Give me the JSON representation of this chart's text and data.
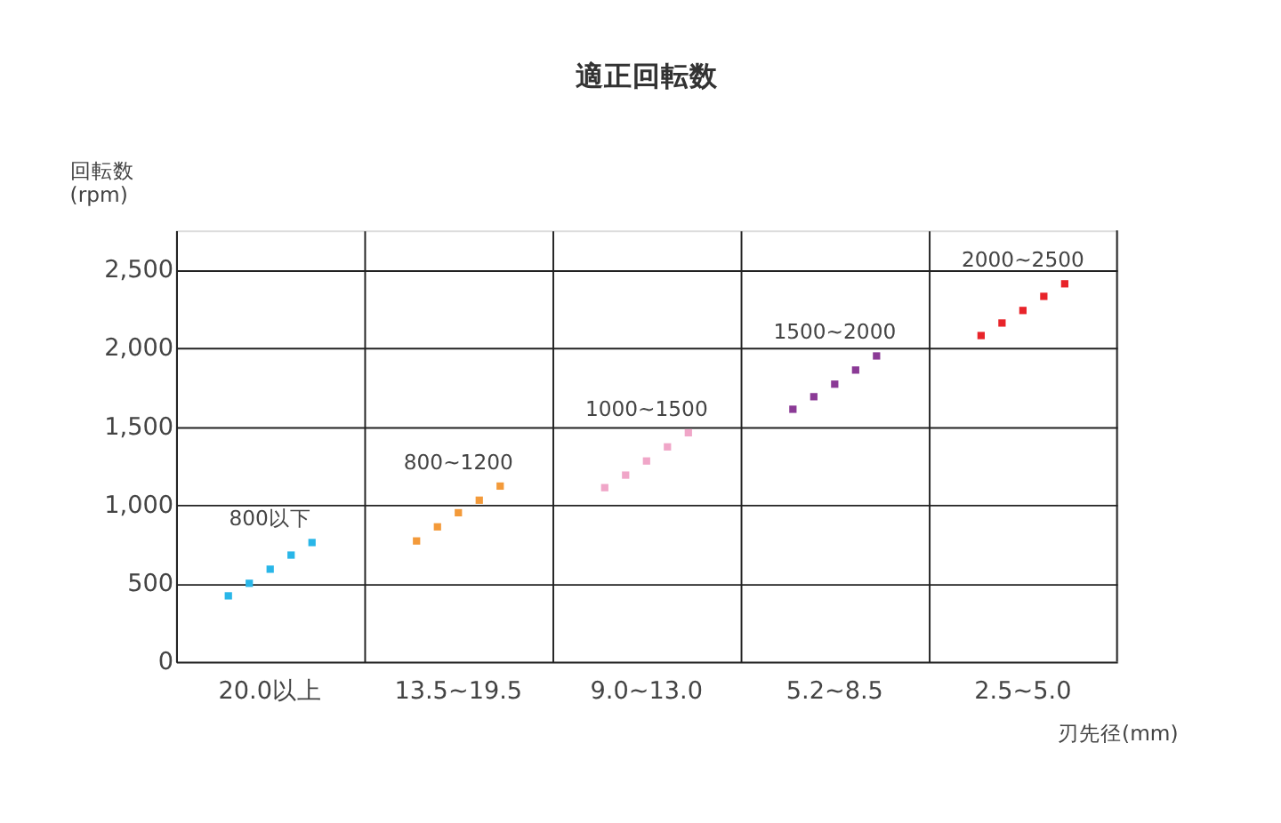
{
  "chart_data": {
    "type": "scatter",
    "title": "適正回転数",
    "xlabel": "刃先径(mm)",
    "ylabel": "回転数\n(rpm)",
    "categories": [
      "20.0以上",
      "13.5~19.5",
      "9.0~13.0",
      "5.2~8.5",
      "2.5~5.0"
    ],
    "series": [
      {
        "color": "#29b6e8",
        "x": [
          "20.0以上",
          "20.0以上",
          "20.0以上",
          "20.0以上",
          "20.0以上"
        ],
        "values": [
          420,
          500,
          590,
          680,
          760
        ]
      },
      {
        "color": "#f39a3a",
        "x": [
          "13.5~19.5",
          "13.5~19.5",
          "13.5~19.5",
          "13.5~19.5",
          "13.5~19.5"
        ],
        "values": [
          770,
          860,
          950,
          1030,
          1120
        ]
      },
      {
        "color": "#f0a6c8",
        "x": [
          "9.0~13.0",
          "9.0~13.0",
          "9.0~13.0",
          "9.0~13.0",
          "9.0~13.0"
        ],
        "values": [
          1110,
          1190,
          1280,
          1370,
          1460
        ]
      },
      {
        "color": "#8b3a96",
        "x": [
          "5.2~8.5",
          "5.2~8.5",
          "5.2~8.5",
          "5.2~8.5",
          "5.2~8.5"
        ],
        "values": [
          1610,
          1690,
          1770,
          1860,
          1950
        ]
      },
      {
        "color": "#e8242a",
        "x": [
          "2.5~5.0",
          "2.5~5.0",
          "2.5~5.0",
          "2.5~5.0",
          "2.5~5.0"
        ],
        "values": [
          2080,
          2160,
          2240,
          2330,
          2410
        ]
      }
    ],
    "annotations": [
      "800以下",
      "800~1200",
      "1000~1500",
      "1500~2000",
      "2000~2500"
    ],
    "ylim": [
      0,
      2750
    ],
    "yticks": [
      {
        "value": 0,
        "label": "0"
      },
      {
        "value": 500,
        "label": "500"
      },
      {
        "value": 1000,
        "label": "1,000"
      },
      {
        "value": 1500,
        "label": "1,500"
      },
      {
        "value": 2000,
        "label": "2,000"
      },
      {
        "value": 2500,
        "label": "2,500"
      }
    ],
    "grid": true,
    "legend": false,
    "marker": "square"
  }
}
